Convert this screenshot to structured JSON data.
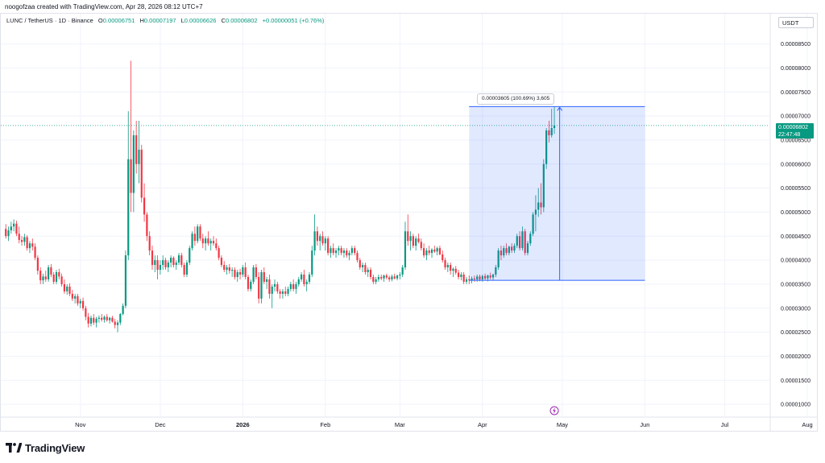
{
  "header": {
    "created_text": "noogofzaa created with TradingView.com, Apr 28, 2026 08:12 UTC+7",
    "symbol": "LUNC / TetherUS · 1D · Binance",
    "o_label": "O",
    "o_value": "0.00006751",
    "h_label": "H",
    "h_value": "0.00007197",
    "l_label": "L",
    "l_value": "0.00006626",
    "c_label": "C",
    "c_value": "0.00006802",
    "change": "+0.00000051 (+0.76%)"
  },
  "axis_unit": "USDT",
  "last_price": {
    "value": "0.00006802",
    "countdown": "22:47:48"
  },
  "measure": {
    "label": "0.00003605 (100.69%) 3,605"
  },
  "brand": {
    "name": "TradingView"
  },
  "colors": {
    "up": "#089981",
    "down": "#f23645",
    "measure": "#2962ff"
  },
  "chart_data": {
    "type": "candlestick",
    "y_ticks": [
      "0.00001000",
      "0.00001500",
      "0.00002000",
      "0.00002500",
      "0.00003000",
      "0.00003500",
      "0.00004000",
      "0.00004500",
      "0.00005000",
      "0.00005500",
      "0.00006000",
      "0.00006500",
      "0.00007000",
      "0.00007500",
      "0.00008000",
      "0.00008500"
    ],
    "x_ticks": [
      "Nov",
      "Dec",
      "2026",
      "Feb",
      "Mar",
      "Apr",
      "May",
      "Jun",
      "Jul",
      "Aug"
    ],
    "ylim": [
      7.5e-06,
      9.13e-05
    ],
    "measure_range": {
      "start": "2026-03-27",
      "end": "2026-06-01",
      "low": 3.58e-05,
      "high": 7.197e-05
    },
    "candles": [
      [
        "2025-10-04",
        4.65,
        4.75,
        4.45,
        4.5
      ],
      [
        "2025-10-05",
        4.5,
        4.7,
        4.4,
        4.62
      ],
      [
        "2025-10-06",
        4.62,
        4.8,
        4.55,
        4.7
      ],
      [
        "2025-10-07",
        4.7,
        4.85,
        4.6,
        4.76
      ],
      [
        "2025-10-08",
        4.76,
        4.82,
        4.5,
        4.55
      ],
      [
        "2025-10-09",
        4.55,
        4.7,
        4.35,
        4.42
      ],
      [
        "2025-10-10",
        4.42,
        4.5,
        4.3,
        4.38
      ],
      [
        "2025-10-11",
        4.38,
        4.55,
        4.3,
        4.48
      ],
      [
        "2025-10-12",
        4.48,
        4.52,
        4.2,
        4.25
      ],
      [
        "2025-10-13",
        4.25,
        4.4,
        4.15,
        4.35
      ],
      [
        "2025-10-14",
        4.35,
        4.45,
        4.2,
        4.28
      ],
      [
        "2025-10-15",
        4.28,
        4.35,
        4.0,
        4.05
      ],
      [
        "2025-10-16",
        4.05,
        4.1,
        3.7,
        3.78
      ],
      [
        "2025-10-17",
        3.78,
        3.85,
        3.5,
        3.58
      ],
      [
        "2025-10-18",
        3.58,
        3.72,
        3.5,
        3.66
      ],
      [
        "2025-10-19",
        3.66,
        3.78,
        3.55,
        3.6
      ],
      [
        "2025-10-20",
        3.6,
        3.9,
        3.55,
        3.85
      ],
      [
        "2025-10-21",
        3.85,
        3.92,
        3.65,
        3.7
      ],
      [
        "2025-10-22",
        3.7,
        3.75,
        3.5,
        3.55
      ],
      [
        "2025-10-23",
        3.55,
        3.8,
        3.5,
        3.75
      ],
      [
        "2025-10-24",
        3.75,
        3.82,
        3.6,
        3.66
      ],
      [
        "2025-10-25",
        3.66,
        3.72,
        3.45,
        3.5
      ],
      [
        "2025-10-26",
        3.5,
        3.6,
        3.3,
        3.35
      ],
      [
        "2025-10-27",
        3.35,
        3.5,
        3.28,
        3.45
      ],
      [
        "2025-10-28",
        3.45,
        3.52,
        3.25,
        3.3
      ],
      [
        "2025-10-29",
        3.3,
        3.38,
        3.15,
        3.2
      ],
      [
        "2025-10-30",
        3.2,
        3.3,
        3.1,
        3.25
      ],
      [
        "2025-10-31",
        3.25,
        3.3,
        3.05,
        3.1
      ],
      [
        "2025-11-01",
        3.1,
        3.2,
        3.0,
        3.15
      ],
      [
        "2025-11-02",
        3.15,
        3.22,
        2.95,
        3.0
      ],
      [
        "2025-11-03",
        3.0,
        3.05,
        2.75,
        2.82
      ],
      [
        "2025-11-04",
        2.82,
        2.9,
        2.6,
        2.68
      ],
      [
        "2025-11-05",
        2.68,
        2.85,
        2.62,
        2.8
      ],
      [
        "2025-11-06",
        2.8,
        2.88,
        2.65,
        2.7
      ],
      [
        "2025-11-07",
        2.7,
        2.82,
        2.6,
        2.78
      ],
      [
        "2025-11-08",
        2.78,
        2.85,
        2.7,
        2.8
      ],
      [
        "2025-11-09",
        2.8,
        2.88,
        2.72,
        2.76
      ],
      [
        "2025-11-10",
        2.76,
        2.85,
        2.7,
        2.82
      ],
      [
        "2025-11-11",
        2.82,
        2.88,
        2.72,
        2.75
      ],
      [
        "2025-11-12",
        2.75,
        2.82,
        2.68,
        2.8
      ],
      [
        "2025-11-13",
        2.8,
        2.84,
        2.7,
        2.72
      ],
      [
        "2025-11-14",
        2.72,
        2.78,
        2.58,
        2.65
      ],
      [
        "2025-11-15",
        2.65,
        2.75,
        2.5,
        2.7
      ],
      [
        "2025-11-16",
        2.7,
        2.9,
        2.65,
        2.88
      ],
      [
        "2025-11-17",
        2.88,
        3.1,
        2.85,
        3.05
      ],
      [
        "2025-11-18",
        3.05,
        4.2,
        3.0,
        4.1
      ],
      [
        "2025-11-19",
        4.1,
        7.1,
        4.0,
        6.1
      ],
      [
        "2025-11-20",
        6.1,
        8.15,
        5.0,
        5.4
      ],
      [
        "2025-11-21",
        5.4,
        6.7,
        5.0,
        6.6
      ],
      [
        "2025-11-22",
        6.6,
        6.9,
        5.8,
        6.0
      ],
      [
        "2025-11-23",
        6.0,
        6.9,
        5.6,
        6.3
      ],
      [
        "2025-11-24",
        6.3,
        6.4,
        5.2,
        5.3
      ],
      [
        "2025-11-25",
        5.3,
        5.6,
        4.8,
        4.95
      ],
      [
        "2025-11-26",
        4.95,
        5.0,
        4.4,
        4.5
      ],
      [
        "2025-11-27",
        4.5,
        4.6,
        4.1,
        4.2
      ],
      [
        "2025-11-28",
        4.2,
        4.3,
        3.8,
        3.9
      ],
      [
        "2025-11-29",
        3.9,
        4.1,
        3.75,
        4.0
      ],
      [
        "2025-11-30",
        4.0,
        4.1,
        3.6,
        3.8
      ],
      [
        "2025-12-01",
        3.8,
        4.0,
        3.7,
        3.9
      ],
      [
        "2025-12-02",
        3.9,
        4.1,
        3.8,
        4.0
      ],
      [
        "2025-12-03",
        4.0,
        4.05,
        3.8,
        3.85
      ],
      [
        "2025-12-04",
        3.85,
        4.0,
        3.75,
        3.95
      ],
      [
        "2025-12-05",
        3.95,
        4.1,
        3.85,
        4.05
      ],
      [
        "2025-12-06",
        4.05,
        4.08,
        3.85,
        3.9
      ],
      [
        "2025-12-07",
        3.9,
        4.0,
        3.8,
        3.95
      ],
      [
        "2025-12-08",
        3.95,
        4.15,
        3.9,
        4.1
      ],
      [
        "2025-12-09",
        4.1,
        4.15,
        3.85,
        3.9
      ],
      [
        "2025-12-10",
        3.9,
        3.95,
        3.65,
        3.7
      ],
      [
        "2025-12-11",
        3.7,
        4.0,
        3.65,
        3.95
      ],
      [
        "2025-12-12",
        3.95,
        4.3,
        3.9,
        4.25
      ],
      [
        "2025-12-13",
        4.25,
        4.6,
        4.2,
        4.55
      ],
      [
        "2025-12-14",
        4.55,
        4.7,
        4.3,
        4.4
      ],
      [
        "2025-12-15",
        4.4,
        4.75,
        4.35,
        4.7
      ],
      [
        "2025-12-16",
        4.7,
        4.75,
        4.4,
        4.45
      ],
      [
        "2025-12-17",
        4.45,
        4.55,
        4.25,
        4.35
      ],
      [
        "2025-12-18",
        4.35,
        4.5,
        4.2,
        4.45
      ],
      [
        "2025-12-19",
        4.45,
        4.6,
        4.3,
        4.35
      ],
      [
        "2025-12-20",
        4.35,
        4.45,
        4.2,
        4.4
      ],
      [
        "2025-12-21",
        4.4,
        4.5,
        4.3,
        4.35
      ],
      [
        "2025-12-22",
        4.35,
        4.45,
        4.2,
        4.25
      ],
      [
        "2025-12-23",
        4.25,
        4.3,
        4.0,
        4.05
      ],
      [
        "2025-12-24",
        4.05,
        4.1,
        3.85,
        3.9
      ],
      [
        "2025-12-25",
        3.9,
        3.98,
        3.75,
        3.8
      ],
      [
        "2025-12-26",
        3.8,
        3.9,
        3.7,
        3.85
      ],
      [
        "2025-12-27",
        3.85,
        3.92,
        3.72,
        3.78
      ],
      [
        "2025-12-28",
        3.78,
        3.85,
        3.65,
        3.8
      ],
      [
        "2025-12-29",
        3.8,
        3.85,
        3.6,
        3.65
      ],
      [
        "2025-12-30",
        3.65,
        3.8,
        3.55,
        3.75
      ],
      [
        "2025-12-31",
        3.75,
        3.82,
        3.6,
        3.7
      ],
      [
        "2026-01-01",
        3.7,
        3.9,
        3.65,
        3.85
      ],
      [
        "2026-01-02",
        3.85,
        3.95,
        3.6,
        3.65
      ],
      [
        "2026-01-03",
        3.65,
        3.7,
        3.35,
        3.4
      ],
      [
        "2026-01-04",
        3.4,
        3.6,
        3.35,
        3.55
      ],
      [
        "2026-01-05",
        3.55,
        3.9,
        3.5,
        3.85
      ],
      [
        "2026-01-06",
        3.85,
        3.92,
        3.6,
        3.65
      ],
      [
        "2026-01-07",
        3.65,
        3.75,
        3.1,
        3.2
      ],
      [
        "2026-01-08",
        3.2,
        3.8,
        3.1,
        3.75
      ],
      [
        "2026-01-09",
        3.75,
        3.85,
        3.5,
        3.55
      ],
      [
        "2026-01-10",
        3.55,
        3.65,
        3.4,
        3.6
      ],
      [
        "2026-01-11",
        3.6,
        3.7,
        3.2,
        3.3
      ],
      [
        "2026-01-12",
        3.3,
        3.5,
        3.0,
        3.45
      ],
      [
        "2026-01-13",
        3.45,
        3.6,
        3.35,
        3.5
      ],
      [
        "2026-01-14",
        3.5,
        3.55,
        3.3,
        3.35
      ],
      [
        "2026-01-15",
        3.35,
        3.4,
        3.2,
        3.3
      ],
      [
        "2026-01-16",
        3.3,
        3.4,
        3.2,
        3.35
      ],
      [
        "2026-01-17",
        3.35,
        3.45,
        3.25,
        3.3
      ],
      [
        "2026-01-18",
        3.3,
        3.45,
        3.25,
        3.4
      ],
      [
        "2026-01-19",
        3.4,
        3.55,
        3.35,
        3.5
      ],
      [
        "2026-01-20",
        3.5,
        3.6,
        3.35,
        3.4
      ],
      [
        "2026-01-21",
        3.4,
        3.55,
        3.3,
        3.5
      ],
      [
        "2026-01-22",
        3.5,
        3.65,
        3.45,
        3.6
      ],
      [
        "2026-01-23",
        3.6,
        3.75,
        3.55,
        3.7
      ],
      [
        "2026-01-24",
        3.7,
        3.8,
        3.45,
        3.5
      ],
      [
        "2026-01-25",
        3.5,
        3.6,
        3.35,
        3.55
      ],
      [
        "2026-01-26",
        3.55,
        3.75,
        3.5,
        3.7
      ],
      [
        "2026-01-27",
        3.7,
        4.3,
        3.65,
        4.2
      ],
      [
        "2026-01-28",
        4.2,
        4.95,
        4.1,
        4.6
      ],
      [
        "2026-01-29",
        4.6,
        4.7,
        4.3,
        4.4
      ],
      [
        "2026-01-30",
        4.4,
        4.55,
        4.2,
        4.5
      ],
      [
        "2026-01-31",
        4.5,
        4.6,
        4.3,
        4.35
      ],
      [
        "2026-02-01",
        4.35,
        4.5,
        4.2,
        4.45
      ],
      [
        "2026-02-02",
        4.45,
        4.5,
        4.1,
        4.15
      ],
      [
        "2026-02-03",
        4.15,
        4.3,
        4.05,
        4.25
      ],
      [
        "2026-02-04",
        4.25,
        4.35,
        4.1,
        4.15
      ],
      [
        "2026-02-05",
        4.15,
        4.25,
        4.05,
        4.2
      ],
      [
        "2026-02-06",
        4.2,
        4.3,
        4.1,
        4.25
      ],
      [
        "2026-02-07",
        4.25,
        4.3,
        4.1,
        4.15
      ],
      [
        "2026-02-08",
        4.15,
        4.25,
        4.05,
        4.2
      ],
      [
        "2026-02-09",
        4.2,
        4.25,
        4.05,
        4.1
      ],
      [
        "2026-02-10",
        4.1,
        4.2,
        4.0,
        4.15
      ],
      [
        "2026-02-11",
        4.15,
        4.3,
        4.1,
        4.25
      ],
      [
        "2026-02-12",
        4.25,
        4.3,
        4.1,
        4.15
      ],
      [
        "2026-02-13",
        4.15,
        4.2,
        3.95,
        4.0
      ],
      [
        "2026-02-14",
        4.0,
        4.05,
        3.8,
        3.85
      ],
      [
        "2026-02-15",
        3.85,
        3.95,
        3.75,
        3.9
      ],
      [
        "2026-02-16",
        3.9,
        3.95,
        3.7,
        3.75
      ],
      [
        "2026-02-17",
        3.75,
        3.85,
        3.65,
        3.8
      ],
      [
        "2026-02-18",
        3.8,
        3.85,
        3.6,
        3.65
      ],
      [
        "2026-02-19",
        3.65,
        3.7,
        3.5,
        3.55
      ],
      [
        "2026-02-20",
        3.55,
        3.65,
        3.5,
        3.6
      ],
      [
        "2026-02-21",
        3.6,
        3.7,
        3.55,
        3.65
      ],
      [
        "2026-02-22",
        3.65,
        3.7,
        3.58,
        3.62
      ],
      [
        "2026-02-23",
        3.62,
        3.7,
        3.55,
        3.68
      ],
      [
        "2026-02-24",
        3.68,
        3.72,
        3.6,
        3.64
      ],
      [
        "2026-02-25",
        3.64,
        3.68,
        3.55,
        3.6
      ],
      [
        "2026-02-26",
        3.6,
        3.7,
        3.56,
        3.66
      ],
      [
        "2026-02-27",
        3.66,
        3.72,
        3.6,
        3.62
      ],
      [
        "2026-02-28",
        3.62,
        3.7,
        3.58,
        3.68
      ],
      [
        "2026-03-01",
        3.68,
        3.75,
        3.6,
        3.7
      ],
      [
        "2026-03-02",
        3.7,
        3.9,
        3.65,
        3.85
      ]
    ]
  }
}
